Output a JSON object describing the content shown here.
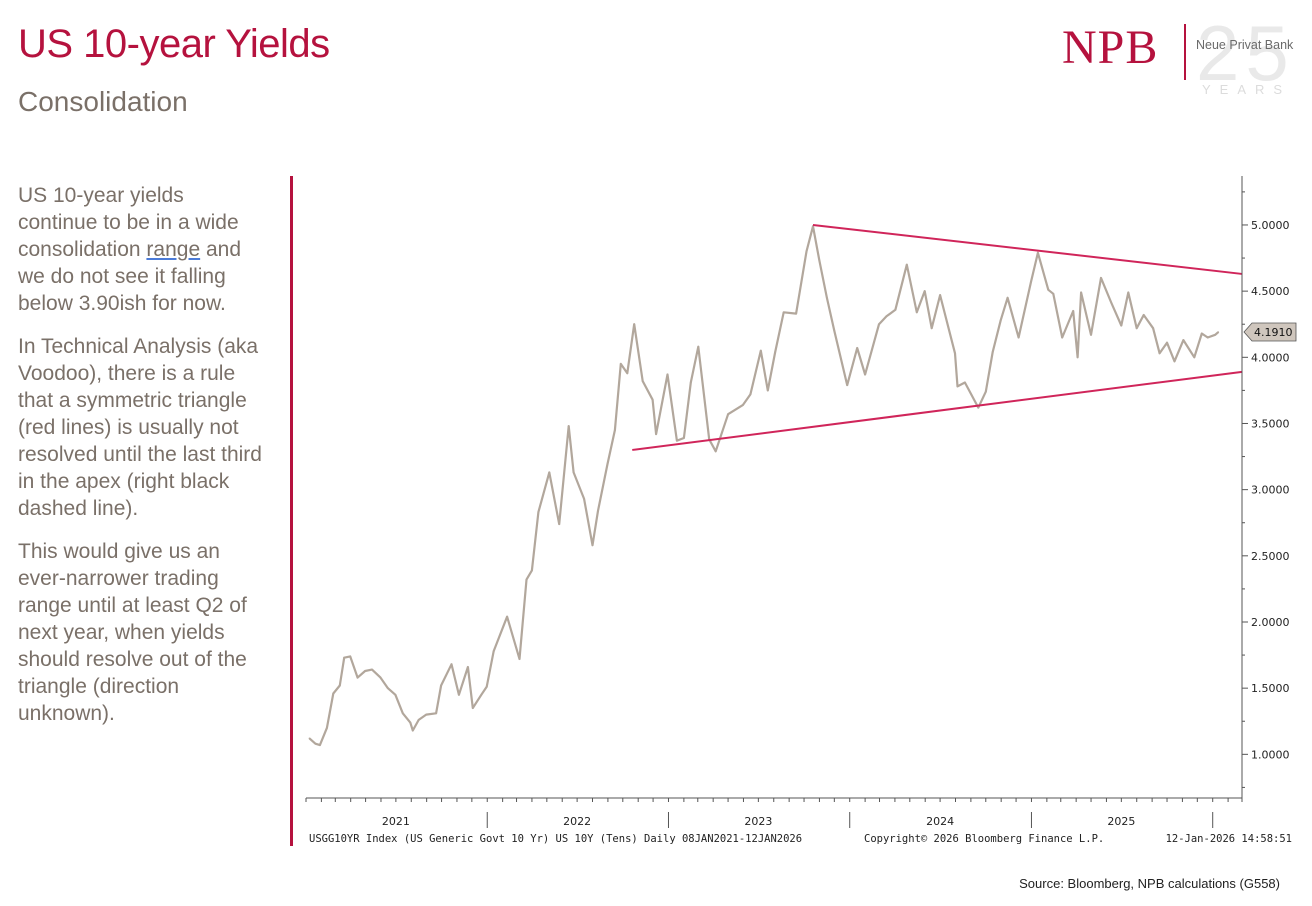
{
  "header": {
    "title": "US 10-year Yields",
    "subtitle": "Consolidation"
  },
  "logo": {
    "letters": "NPB",
    "name": "Neue Privat Bank",
    "anniversary": "25",
    "anniversary_label": "YEARS",
    "brand_color": "#b5123e"
  },
  "commentary": {
    "p1_before": "US 10-year yields continue to be in a wide consolidation ",
    "p1_link": "range",
    "p1_after": " and we do not see it falling below 3.90ish for now.",
    "p2": "In Technical Analysis (aka Voodoo), there is a rule that a symmetric triangle (red lines) is usually not resolved until the last third in the apex (right black dashed line).",
    "p3": "This would give us an ever-narrower trading range until at least Q2 of next year, when yields should resolve out of the triangle (direction unknown)."
  },
  "source": "Source: Bloomberg, NPB calculations (G558)",
  "chart_data": {
    "type": "line",
    "series": [
      {
        "color": "#b2a79c",
        "points": [
          [
            "2021-01-08",
            1.12
          ],
          [
            "2021-01-20",
            1.08
          ],
          [
            "2021-01-29",
            1.07
          ],
          [
            "2021-02-12",
            1.2
          ],
          [
            "2021-02-25",
            1.46
          ],
          [
            "2021-03-10",
            1.52
          ],
          [
            "2021-03-19",
            1.73
          ],
          [
            "2021-03-31",
            1.74
          ],
          [
            "2021-04-15",
            1.58
          ],
          [
            "2021-04-30",
            1.63
          ],
          [
            "2021-05-14",
            1.64
          ],
          [
            "2021-05-31",
            1.58
          ],
          [
            "2021-06-15",
            1.5
          ],
          [
            "2021-06-30",
            1.45
          ],
          [
            "2021-07-15",
            1.31
          ],
          [
            "2021-07-30",
            1.24
          ],
          [
            "2021-08-04",
            1.18
          ],
          [
            "2021-08-16",
            1.26
          ],
          [
            "2021-08-31",
            1.3
          ],
          [
            "2021-09-20",
            1.31
          ],
          [
            "2021-09-30",
            1.52
          ],
          [
            "2021-10-21",
            1.68
          ],
          [
            "2021-11-05",
            1.45
          ],
          [
            "2021-11-23",
            1.66
          ],
          [
            "2021-12-03",
            1.35
          ],
          [
            "2021-12-20",
            1.45
          ],
          [
            "2021-12-31",
            1.51
          ],
          [
            "2022-01-14",
            1.78
          ],
          [
            "2022-02-10",
            2.04
          ],
          [
            "2022-03-07",
            1.72
          ],
          [
            "2022-03-21",
            2.32
          ],
          [
            "2022-04-01",
            2.39
          ],
          [
            "2022-04-14",
            2.83
          ],
          [
            "2022-05-06",
            3.13
          ],
          [
            "2022-05-26",
            2.74
          ],
          [
            "2022-06-14",
            3.48
          ],
          [
            "2022-06-24",
            3.13
          ],
          [
            "2022-07-15",
            2.93
          ],
          [
            "2022-08-01",
            2.58
          ],
          [
            "2022-08-12",
            2.84
          ],
          [
            "2022-08-31",
            3.19
          ],
          [
            "2022-09-15",
            3.45
          ],
          [
            "2022-09-27",
            3.95
          ],
          [
            "2022-10-10",
            3.88
          ],
          [
            "2022-10-24",
            4.25
          ],
          [
            "2022-11-10",
            3.82
          ],
          [
            "2022-11-30",
            3.68
          ],
          [
            "2022-12-07",
            3.42
          ],
          [
            "2022-12-30",
            3.87
          ],
          [
            "2023-01-18",
            3.37
          ],
          [
            "2023-02-01",
            3.39
          ],
          [
            "2023-02-15",
            3.81
          ],
          [
            "2023-03-02",
            4.08
          ],
          [
            "2023-03-24",
            3.38
          ],
          [
            "2023-04-06",
            3.29
          ],
          [
            "2023-05-01",
            3.57
          ],
          [
            "2023-05-31",
            3.64
          ],
          [
            "2023-06-15",
            3.72
          ],
          [
            "2023-07-06",
            4.05
          ],
          [
            "2023-07-20",
            3.75
          ],
          [
            "2023-08-04",
            4.04
          ],
          [
            "2023-08-21",
            4.34
          ],
          [
            "2023-09-15",
            4.33
          ],
          [
            "2023-10-06",
            4.8
          ],
          [
            "2023-10-19",
            4.99
          ],
          [
            "2023-11-01",
            4.73
          ],
          [
            "2023-11-16",
            4.45
          ],
          [
            "2023-12-01",
            4.2
          ],
          [
            "2023-12-27",
            3.79
          ],
          [
            "2024-01-16",
            4.07
          ],
          [
            "2024-02-01",
            3.87
          ],
          [
            "2024-02-29",
            4.25
          ],
          [
            "2024-03-15",
            4.31
          ],
          [
            "2024-04-02",
            4.36
          ],
          [
            "2024-04-25",
            4.7
          ],
          [
            "2024-05-15",
            4.34
          ],
          [
            "2024-05-31",
            4.5
          ],
          [
            "2024-06-14",
            4.22
          ],
          [
            "2024-07-01",
            4.47
          ],
          [
            "2024-07-31",
            4.03
          ],
          [
            "2024-08-05",
            3.78
          ],
          [
            "2024-08-20",
            3.81
          ],
          [
            "2024-09-16",
            3.62
          ],
          [
            "2024-10-01",
            3.74
          ],
          [
            "2024-10-15",
            4.04
          ],
          [
            "2024-10-31",
            4.28
          ],
          [
            "2024-11-14",
            4.45
          ],
          [
            "2024-12-06",
            4.15
          ],
          [
            "2024-12-31",
            4.57
          ],
          [
            "2025-01-14",
            4.79
          ],
          [
            "2025-02-04",
            4.51
          ],
          [
            "2025-02-14",
            4.48
          ],
          [
            "2025-03-04",
            4.15
          ],
          [
            "2025-03-26",
            4.35
          ],
          [
            "2025-04-04",
            4.0
          ],
          [
            "2025-04-11",
            4.49
          ],
          [
            "2025-05-01",
            4.17
          ],
          [
            "2025-05-21",
            4.6
          ],
          [
            "2025-06-11",
            4.41
          ],
          [
            "2025-07-01",
            4.24
          ],
          [
            "2025-07-15",
            4.49
          ],
          [
            "2025-08-01",
            4.22
          ],
          [
            "2025-08-15",
            4.32
          ],
          [
            "2025-09-03",
            4.22
          ],
          [
            "2025-09-16",
            4.03
          ],
          [
            "2025-10-01",
            4.11
          ],
          [
            "2025-10-16",
            3.97
          ],
          [
            "2025-11-03",
            4.13
          ],
          [
            "2025-11-25",
            4.0
          ],
          [
            "2025-12-10",
            4.18
          ],
          [
            "2025-12-22",
            4.15
          ],
          [
            "2026-01-06",
            4.17
          ],
          [
            "2026-01-12",
            4.19
          ]
        ]
      }
    ],
    "trendlines": [
      {
        "label": "upper",
        "color": "#d0255a",
        "from": [
          "2023-10-19",
          5.0
        ],
        "to": [
          "2026-03-01",
          4.63
        ]
      },
      {
        "label": "lower",
        "color": "#d0255a",
        "from": [
          "2022-10-20",
          3.3
        ],
        "to": [
          "2026-03-01",
          3.89
        ]
      }
    ],
    "last_value_label": "4.1910",
    "last_value": 4.191,
    "y_ticks": [
      "1.0000",
      "1.5000",
      "2.0000",
      "2.5000",
      "3.0000",
      "3.5000",
      "4.0000",
      "4.5000",
      "5.0000"
    ],
    "y_values": [
      1.0,
      1.5,
      2.0,
      2.5,
      3.0,
      3.5,
      4.0,
      4.5,
      5.0
    ],
    "ylim": [
      0.67,
      5.37
    ],
    "x_range": [
      "2021-01-01",
      "2026-03-01"
    ],
    "x_year_labels": [
      "2021",
      "2022",
      "2023",
      "2024",
      "2025"
    ],
    "footer_left": "USGG10YR Index (US Generic Govt 10 Yr) US 10Y (Tens) Daily 08JAN2021-12JAN2026",
    "footer_mid": "Copyright© 2026 Bloomberg Finance L.P.",
    "footer_right": "12-Jan-2026 14:58:51",
    "grid": false,
    "y_axis_side": "right"
  }
}
